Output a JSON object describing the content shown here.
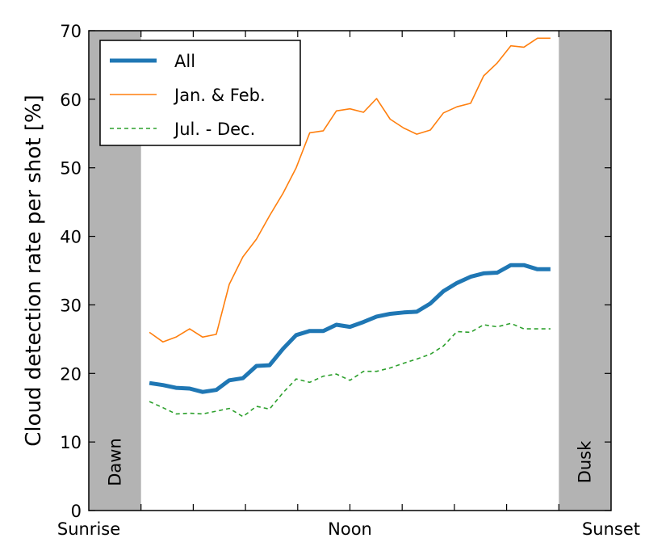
{
  "chart_data": {
    "type": "line",
    "ylabel": "Cloud detection rate per shot [%]",
    "ylim": [
      0,
      70
    ],
    "yticks": [
      0,
      10,
      20,
      30,
      40,
      50,
      60,
      70
    ],
    "xlim": [
      0,
      1
    ],
    "xticks": [
      {
        "value": 0,
        "label": "Sunrise"
      },
      {
        "value": 0.5,
        "label": "Noon"
      },
      {
        "value": 1,
        "label": "Sunset"
      }
    ],
    "x_minor_ticks": [
      0.1,
      0.2,
      0.3,
      0.4,
      0.5,
      0.6,
      0.7,
      0.8,
      0.9
    ],
    "bands": [
      {
        "name": "Dawn",
        "from": 0,
        "to": 0.1,
        "color": "#b3b3b3"
      },
      {
        "name": "Dusk",
        "from": 0.9,
        "to": 1.0,
        "color": "#b3b3b3"
      }
    ],
    "legend": {
      "placement": "top-left"
    },
    "series": [
      {
        "name": "All",
        "color": "#1f77b4",
        "style": "solid-thick",
        "x": [
          0.116,
          0.142,
          0.167,
          0.193,
          0.218,
          0.244,
          0.269,
          0.295,
          0.321,
          0.346,
          0.372,
          0.397,
          0.423,
          0.449,
          0.474,
          0.5,
          0.526,
          0.551,
          0.577,
          0.603,
          0.628,
          0.654,
          0.679,
          0.705,
          0.731,
          0.756,
          0.782,
          0.808,
          0.833,
          0.859,
          0.884
        ],
        "values": [
          18.6,
          18.3,
          17.9,
          17.8,
          17.3,
          17.6,
          19.0,
          19.3,
          21.1,
          21.2,
          23.6,
          25.6,
          26.2,
          26.2,
          27.1,
          26.8,
          27.5,
          28.3,
          28.7,
          28.9,
          29.0,
          30.2,
          32.0,
          33.2,
          34.1,
          34.6,
          34.7,
          35.8,
          35.8,
          35.2,
          35.2
        ]
      },
      {
        "name": "Jan. & Feb.",
        "color": "#ff7f0e",
        "style": "solid-thin",
        "x": [
          0.116,
          0.142,
          0.167,
          0.193,
          0.218,
          0.244,
          0.269,
          0.295,
          0.321,
          0.346,
          0.372,
          0.397,
          0.423,
          0.449,
          0.474,
          0.5,
          0.526,
          0.551,
          0.577,
          0.603,
          0.628,
          0.654,
          0.679,
          0.705,
          0.731,
          0.756,
          0.782,
          0.808,
          0.833,
          0.859,
          0.884
        ],
        "values": [
          26.0,
          24.6,
          25.3,
          26.5,
          25.3,
          25.7,
          33.0,
          37.0,
          39.6,
          43.0,
          46.3,
          50.0,
          55.1,
          55.4,
          58.3,
          58.6,
          58.1,
          60.1,
          57.1,
          55.8,
          54.9,
          55.5,
          58.0,
          58.9,
          59.4,
          63.4,
          65.3,
          67.8,
          67.6,
          68.9,
          68.9
        ]
      },
      {
        "name": "Jul. - Dec.",
        "color": "#2ca02c",
        "style": "dashed",
        "x": [
          0.116,
          0.142,
          0.167,
          0.193,
          0.218,
          0.244,
          0.269,
          0.295,
          0.321,
          0.346,
          0.372,
          0.397,
          0.423,
          0.449,
          0.474,
          0.5,
          0.526,
          0.551,
          0.577,
          0.603,
          0.628,
          0.654,
          0.679,
          0.705,
          0.731,
          0.756,
          0.782,
          0.808,
          0.833,
          0.859,
          0.884
        ],
        "values": [
          15.9,
          15.0,
          14.1,
          14.2,
          14.1,
          14.5,
          14.9,
          13.7,
          15.2,
          14.8,
          17.2,
          19.2,
          18.7,
          19.6,
          19.9,
          19.0,
          20.3,
          20.3,
          20.8,
          21.5,
          22.1,
          22.8,
          24.0,
          26.1,
          26.0,
          27.1,
          26.8,
          27.3,
          26.5,
          26.5,
          26.5
        ]
      }
    ]
  }
}
